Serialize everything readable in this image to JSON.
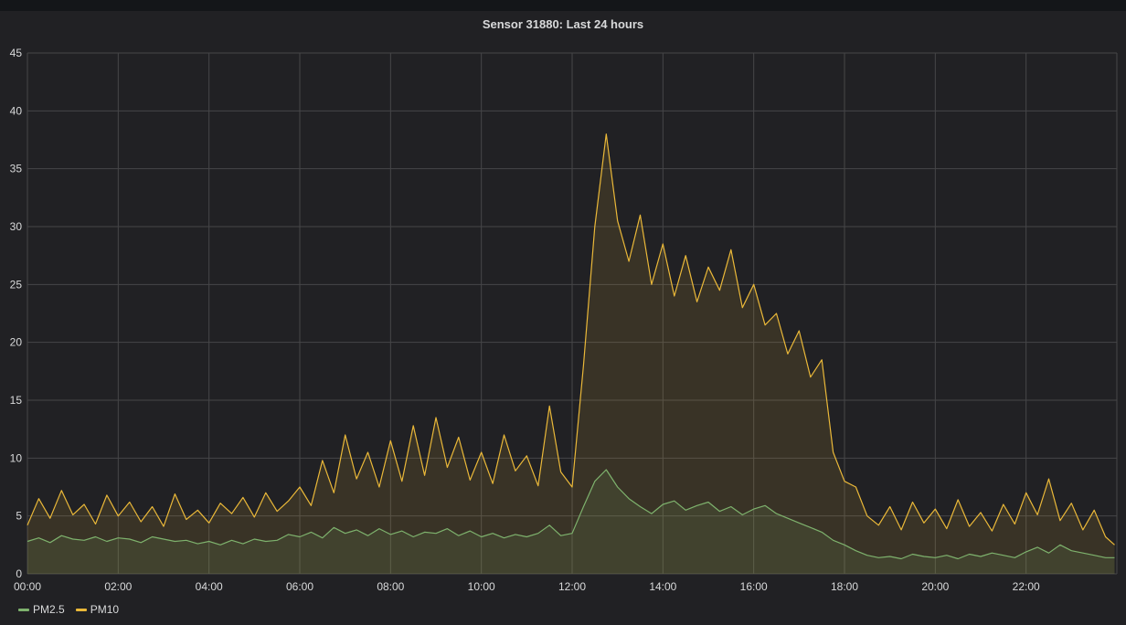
{
  "panel": {
    "title": "Sensor 31880: Last 24 hours"
  },
  "colors": {
    "pm25": "#7eb26d",
    "pm10": "#eab839",
    "grid": "#464648",
    "background": "#212124"
  },
  "chart_data": {
    "type": "line",
    "title": "Sensor 31880: Last 24 hours",
    "xlabel": "",
    "ylabel": "",
    "x_unit": "hours",
    "xlim": [
      0,
      24
    ],
    "ylim": [
      0,
      45
    ],
    "grid": true,
    "fill": true,
    "legend_position": "bottom-left",
    "x_ticks": [
      {
        "value": 0,
        "label": "00:00"
      },
      {
        "value": 2,
        "label": "02:00"
      },
      {
        "value": 4,
        "label": "04:00"
      },
      {
        "value": 6,
        "label": "06:00"
      },
      {
        "value": 8,
        "label": "08:00"
      },
      {
        "value": 10,
        "label": "10:00"
      },
      {
        "value": 12,
        "label": "12:00"
      },
      {
        "value": 14,
        "label": "14:00"
      },
      {
        "value": 16,
        "label": "16:00"
      },
      {
        "value": 18,
        "label": "18:00"
      },
      {
        "value": 20,
        "label": "20:00"
      },
      {
        "value": 22,
        "label": "22:00"
      }
    ],
    "y_ticks": [
      {
        "value": 0,
        "label": "0"
      },
      {
        "value": 5,
        "label": "5"
      },
      {
        "value": 10,
        "label": "10"
      },
      {
        "value": 15,
        "label": "15"
      },
      {
        "value": 20,
        "label": "20"
      },
      {
        "value": 25,
        "label": "25"
      },
      {
        "value": 30,
        "label": "30"
      },
      {
        "value": 35,
        "label": "35"
      },
      {
        "value": 40,
        "label": "40"
      },
      {
        "value": 45,
        "label": "45"
      }
    ],
    "series": [
      {
        "name": "PM2.5",
        "color": "#7eb26d",
        "points": [
          [
            0.0,
            2.8
          ],
          [
            0.25,
            3.1
          ],
          [
            0.5,
            2.7
          ],
          [
            0.75,
            3.3
          ],
          [
            1.0,
            3.0
          ],
          [
            1.25,
            2.9
          ],
          [
            1.5,
            3.2
          ],
          [
            1.75,
            2.8
          ],
          [
            2.0,
            3.1
          ],
          [
            2.25,
            3.0
          ],
          [
            2.5,
            2.7
          ],
          [
            2.75,
            3.2
          ],
          [
            3.0,
            3.0
          ],
          [
            3.25,
            2.8
          ],
          [
            3.5,
            2.9
          ],
          [
            3.75,
            2.6
          ],
          [
            4.0,
            2.8
          ],
          [
            4.25,
            2.5
          ],
          [
            4.5,
            2.9
          ],
          [
            4.75,
            2.6
          ],
          [
            5.0,
            3.0
          ],
          [
            5.25,
            2.8
          ],
          [
            5.5,
            2.9
          ],
          [
            5.75,
            3.4
          ],
          [
            6.0,
            3.2
          ],
          [
            6.25,
            3.6
          ],
          [
            6.5,
            3.1
          ],
          [
            6.75,
            4.0
          ],
          [
            7.0,
            3.5
          ],
          [
            7.25,
            3.8
          ],
          [
            7.5,
            3.3
          ],
          [
            7.75,
            3.9
          ],
          [
            8.0,
            3.4
          ],
          [
            8.25,
            3.7
          ],
          [
            8.5,
            3.2
          ],
          [
            8.75,
            3.6
          ],
          [
            9.0,
            3.5
          ],
          [
            9.25,
            3.9
          ],
          [
            9.5,
            3.3
          ],
          [
            9.75,
            3.7
          ],
          [
            10.0,
            3.2
          ],
          [
            10.25,
            3.5
          ],
          [
            10.5,
            3.1
          ],
          [
            10.75,
            3.4
          ],
          [
            11.0,
            3.2
          ],
          [
            11.25,
            3.5
          ],
          [
            11.5,
            4.2
          ],
          [
            11.75,
            3.3
          ],
          [
            12.0,
            3.5
          ],
          [
            12.25,
            5.8
          ],
          [
            12.5,
            8.0
          ],
          [
            12.75,
            9.0
          ],
          [
            13.0,
            7.5
          ],
          [
            13.25,
            6.5
          ],
          [
            13.5,
            5.8
          ],
          [
            13.75,
            5.2
          ],
          [
            14.0,
            6.0
          ],
          [
            14.25,
            6.3
          ],
          [
            14.5,
            5.5
          ],
          [
            14.75,
            5.9
          ],
          [
            15.0,
            6.2
          ],
          [
            15.25,
            5.4
          ],
          [
            15.5,
            5.8
          ],
          [
            15.75,
            5.1
          ],
          [
            16.0,
            5.6
          ],
          [
            16.25,
            5.9
          ],
          [
            16.5,
            5.2
          ],
          [
            16.75,
            4.8
          ],
          [
            17.0,
            4.4
          ],
          [
            17.25,
            4.0
          ],
          [
            17.5,
            3.6
          ],
          [
            17.75,
            2.9
          ],
          [
            18.0,
            2.5
          ],
          [
            18.25,
            2.0
          ],
          [
            18.5,
            1.6
          ],
          [
            18.75,
            1.4
          ],
          [
            19.0,
            1.5
          ],
          [
            19.25,
            1.3
          ],
          [
            19.5,
            1.7
          ],
          [
            19.75,
            1.5
          ],
          [
            20.0,
            1.4
          ],
          [
            20.25,
            1.6
          ],
          [
            20.5,
            1.3
          ],
          [
            20.75,
            1.7
          ],
          [
            21.0,
            1.5
          ],
          [
            21.25,
            1.8
          ],
          [
            21.5,
            1.6
          ],
          [
            21.75,
            1.4
          ],
          [
            22.0,
            1.9
          ],
          [
            22.25,
            2.3
          ],
          [
            22.5,
            1.8
          ],
          [
            22.75,
            2.5
          ],
          [
            23.0,
            2.0
          ],
          [
            23.25,
            1.8
          ],
          [
            23.5,
            1.6
          ],
          [
            23.75,
            1.4
          ],
          [
            23.95,
            1.4
          ]
        ]
      },
      {
        "name": "PM10",
        "color": "#eab839",
        "points": [
          [
            0.0,
            4.2
          ],
          [
            0.25,
            6.5
          ],
          [
            0.5,
            4.8
          ],
          [
            0.75,
            7.2
          ],
          [
            1.0,
            5.1
          ],
          [
            1.25,
            6.0
          ],
          [
            1.5,
            4.3
          ],
          [
            1.75,
            6.8
          ],
          [
            2.0,
            5.0
          ],
          [
            2.25,
            6.2
          ],
          [
            2.5,
            4.5
          ],
          [
            2.75,
            5.8
          ],
          [
            3.0,
            4.1
          ],
          [
            3.25,
            6.9
          ],
          [
            3.5,
            4.7
          ],
          [
            3.75,
            5.5
          ],
          [
            4.0,
            4.4
          ],
          [
            4.25,
            6.1
          ],
          [
            4.5,
            5.2
          ],
          [
            4.75,
            6.6
          ],
          [
            5.0,
            4.9
          ],
          [
            5.25,
            7.0
          ],
          [
            5.5,
            5.4
          ],
          [
            5.75,
            6.3
          ],
          [
            6.0,
            7.5
          ],
          [
            6.25,
            5.9
          ],
          [
            6.5,
            9.8
          ],
          [
            6.75,
            7.0
          ],
          [
            7.0,
            12.0
          ],
          [
            7.25,
            8.2
          ],
          [
            7.5,
            10.5
          ],
          [
            7.75,
            7.5
          ],
          [
            8.0,
            11.5
          ],
          [
            8.25,
            8.0
          ],
          [
            8.5,
            12.8
          ],
          [
            8.75,
            8.5
          ],
          [
            9.0,
            13.5
          ],
          [
            9.25,
            9.2
          ],
          [
            9.5,
            11.8
          ],
          [
            9.75,
            8.1
          ],
          [
            10.0,
            10.5
          ],
          [
            10.25,
            7.8
          ],
          [
            10.5,
            12.0
          ],
          [
            10.75,
            8.9
          ],
          [
            11.0,
            10.2
          ],
          [
            11.25,
            7.6
          ],
          [
            11.5,
            14.5
          ],
          [
            11.75,
            8.8
          ],
          [
            12.0,
            7.5
          ],
          [
            12.25,
            18.0
          ],
          [
            12.5,
            30.0
          ],
          [
            12.75,
            38.0
          ],
          [
            13.0,
            30.5
          ],
          [
            13.25,
            27.0
          ],
          [
            13.5,
            31.0
          ],
          [
            13.75,
            25.0
          ],
          [
            14.0,
            28.5
          ],
          [
            14.25,
            24.0
          ],
          [
            14.5,
            27.5
          ],
          [
            14.75,
            23.5
          ],
          [
            15.0,
            26.5
          ],
          [
            15.25,
            24.5
          ],
          [
            15.5,
            28.0
          ],
          [
            15.75,
            23.0
          ],
          [
            16.0,
            25.0
          ],
          [
            16.25,
            21.5
          ],
          [
            16.5,
            22.5
          ],
          [
            16.75,
            19.0
          ],
          [
            17.0,
            21.0
          ],
          [
            17.25,
            17.0
          ],
          [
            17.5,
            18.5
          ],
          [
            17.75,
            10.5
          ],
          [
            18.0,
            8.0
          ],
          [
            18.25,
            7.5
          ],
          [
            18.5,
            5.0
          ],
          [
            18.75,
            4.2
          ],
          [
            19.0,
            5.8
          ],
          [
            19.25,
            3.8
          ],
          [
            19.5,
            6.2
          ],
          [
            19.75,
            4.4
          ],
          [
            20.0,
            5.6
          ],
          [
            20.25,
            3.9
          ],
          [
            20.5,
            6.4
          ],
          [
            20.75,
            4.1
          ],
          [
            21.0,
            5.3
          ],
          [
            21.25,
            3.7
          ],
          [
            21.5,
            6.0
          ],
          [
            21.75,
            4.3
          ],
          [
            22.0,
            7.0
          ],
          [
            22.25,
            5.1
          ],
          [
            22.5,
            8.2
          ],
          [
            22.75,
            4.6
          ],
          [
            23.0,
            6.1
          ],
          [
            23.25,
            3.8
          ],
          [
            23.5,
            5.5
          ],
          [
            23.75,
            3.2
          ],
          [
            23.95,
            2.5
          ]
        ]
      }
    ]
  }
}
